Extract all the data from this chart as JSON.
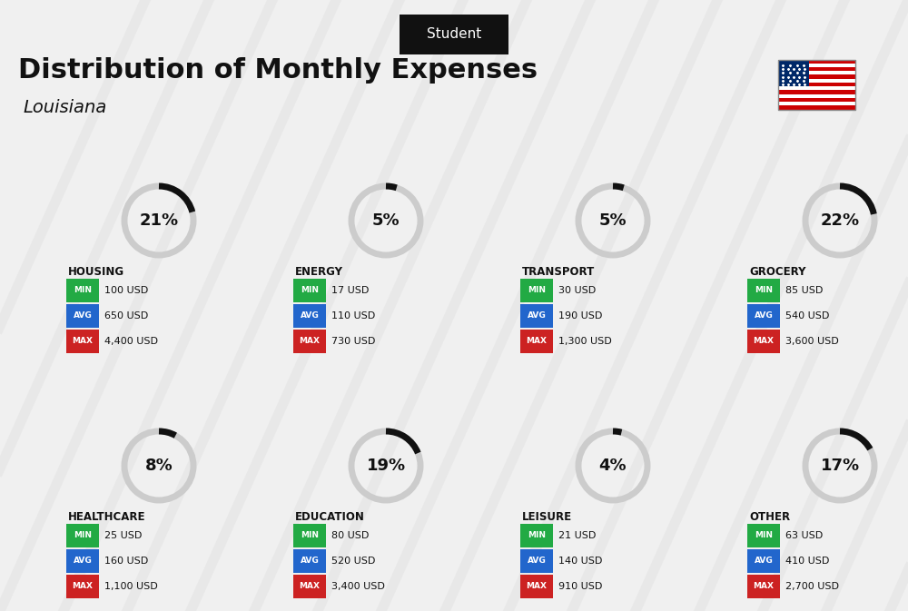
{
  "title": "Distribution of Monthly Expenses",
  "subtitle": "Student",
  "location": "Louisiana",
  "bg_color": "#f0f0f0",
  "categories": [
    {
      "name": "HOUSING",
      "pct": 21,
      "min_val": "100 USD",
      "avg_val": "650 USD",
      "max_val": "4,400 USD",
      "row": 0,
      "col": 0
    },
    {
      "name": "ENERGY",
      "pct": 5,
      "min_val": "17 USD",
      "avg_val": "110 USD",
      "max_val": "730 USD",
      "row": 0,
      "col": 1
    },
    {
      "name": "TRANSPORT",
      "pct": 5,
      "min_val": "30 USD",
      "avg_val": "190 USD",
      "max_val": "1,300 USD",
      "row": 0,
      "col": 2
    },
    {
      "name": "GROCERY",
      "pct": 22,
      "min_val": "85 USD",
      "avg_val": "540 USD",
      "max_val": "3,600 USD",
      "row": 0,
      "col": 3
    },
    {
      "name": "HEALTHCARE",
      "pct": 8,
      "min_val": "25 USD",
      "avg_val": "160 USD",
      "max_val": "1,100 USD",
      "row": 1,
      "col": 0
    },
    {
      "name": "EDUCATION",
      "pct": 19,
      "min_val": "80 USD",
      "avg_val": "520 USD",
      "max_val": "3,400 USD",
      "row": 1,
      "col": 1
    },
    {
      "name": "LEISURE",
      "pct": 4,
      "min_val": "21 USD",
      "avg_val": "140 USD",
      "max_val": "910 USD",
      "row": 1,
      "col": 2
    },
    {
      "name": "OTHER",
      "pct": 17,
      "min_val": "63 USD",
      "avg_val": "410 USD",
      "max_val": "2,700 USD",
      "row": 1,
      "col": 3
    }
  ],
  "min_color": "#22aa44",
  "avg_color": "#2266cc",
  "max_color": "#cc2222",
  "label_color": "#ffffff",
  "text_color": "#111111"
}
